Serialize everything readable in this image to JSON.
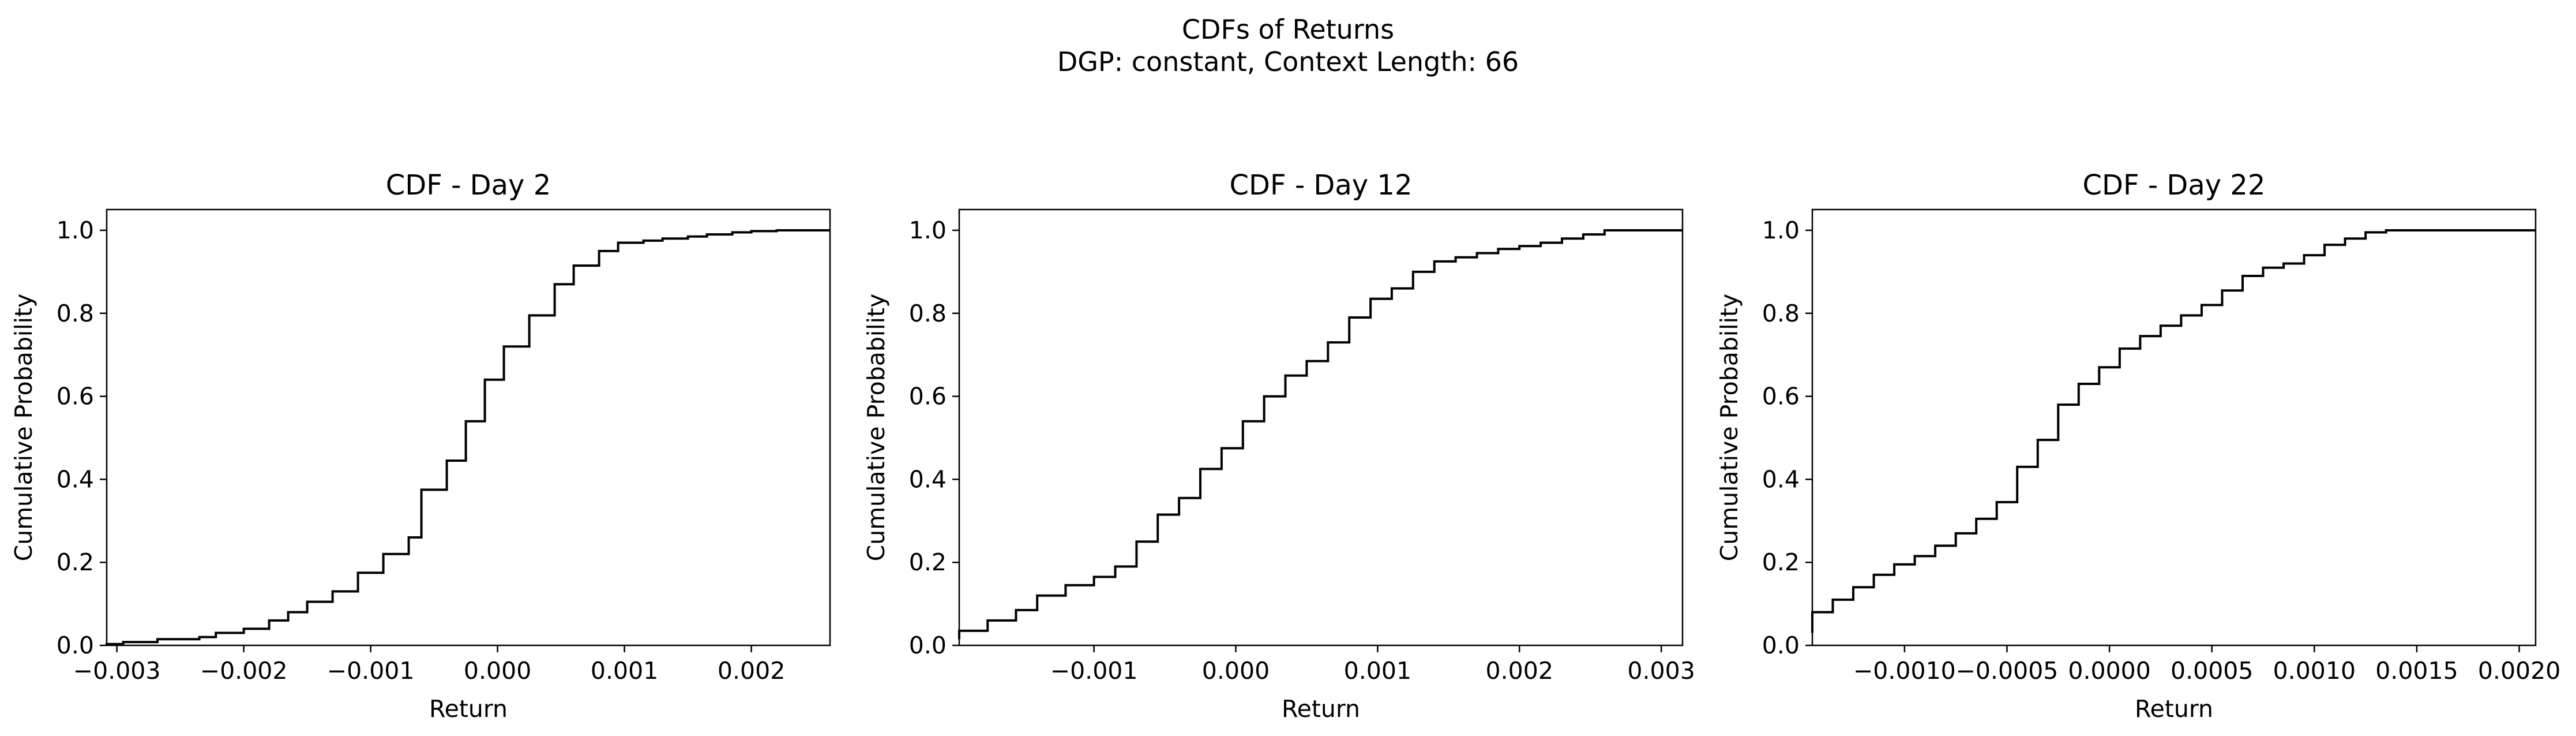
{
  "figure": {
    "title_line1": "CDFs of Returns",
    "title_line2": "DGP: constant, Context Length: 66"
  },
  "chart_data": [
    {
      "type": "line",
      "style": "step",
      "title": "CDF - Day 2",
      "xlabel": "Return",
      "ylabel": "Cumulative Probability",
      "xlim": [
        -0.00308,
        0.00262
      ],
      "ylim": [
        0.0,
        1.05
      ],
      "xticks": [
        -0.003,
        -0.002,
        -0.001,
        0.0,
        0.001,
        0.002
      ],
      "xtick_labels": [
        "−0.003",
        "−0.002",
        "−0.001",
        "0.000",
        "0.001",
        "0.002"
      ],
      "yticks": [
        0.0,
        0.2,
        0.4,
        0.6,
        0.8,
        1.0
      ],
      "ytick_labels": [
        "0.0",
        "0.2",
        "0.4",
        "0.6",
        "0.8",
        "1.0"
      ],
      "grid": false,
      "color": "#000000",
      "x": [
        -0.00308,
        -0.00295,
        -0.00268,
        -0.00235,
        -0.00222,
        -0.002,
        -0.0018,
        -0.00165,
        -0.0015,
        -0.0013,
        -0.0011,
        -0.0009,
        -0.0007,
        -0.0006,
        -0.0004,
        -0.00025,
        -0.0001,
        5e-05,
        0.00025,
        0.00045,
        0.0006,
        0.0008,
        0.00095,
        0.00115,
        0.0013,
        0.0015,
        0.00165,
        0.00185,
        0.002,
        0.0022,
        0.0024,
        0.00262
      ],
      "y": [
        0.0,
        0.003,
        0.008,
        0.015,
        0.02,
        0.03,
        0.04,
        0.06,
        0.08,
        0.105,
        0.13,
        0.175,
        0.22,
        0.26,
        0.375,
        0.445,
        0.54,
        0.64,
        0.72,
        0.795,
        0.87,
        0.915,
        0.95,
        0.97,
        0.975,
        0.98,
        0.985,
        0.99,
        0.995,
        0.998,
        1.0,
        1.0
      ]
    },
    {
      "type": "line",
      "style": "step",
      "title": "CDF - Day 12",
      "xlabel": "Return",
      "ylabel": "Cumulative Probability",
      "xlim": [
        -0.00195,
        0.00315
      ],
      "ylim": [
        0.0,
        1.05
      ],
      "xticks": [
        -0.001,
        0.0,
        0.001,
        0.002,
        0.003
      ],
      "xtick_labels": [
        "−0.001",
        "0.000",
        "0.001",
        "0.002",
        "0.003"
      ],
      "yticks": [
        0.0,
        0.2,
        0.4,
        0.6,
        0.8,
        1.0
      ],
      "ytick_labels": [
        "0.0",
        "0.2",
        "0.4",
        "0.6",
        "0.8",
        "1.0"
      ],
      "grid": false,
      "color": "#000000",
      "x": [
        -0.00195,
        -0.00175,
        -0.00155,
        -0.0014,
        -0.0012,
        -0.001,
        -0.00085,
        -0.0007,
        -0.00055,
        -0.0004,
        -0.00025,
        -0.0001,
        5e-05,
        0.0002,
        0.00035,
        0.0005,
        0.00065,
        0.0008,
        0.00095,
        0.0011,
        0.00125,
        0.0014,
        0.00155,
        0.0017,
        0.00185,
        0.002,
        0.00215,
        0.0023,
        0.00245,
        0.0026,
        0.00275,
        0.0029,
        0.00315
      ],
      "y": [
        0.015,
        0.035,
        0.06,
        0.085,
        0.12,
        0.145,
        0.165,
        0.19,
        0.25,
        0.315,
        0.355,
        0.425,
        0.475,
        0.54,
        0.6,
        0.65,
        0.685,
        0.73,
        0.79,
        0.835,
        0.86,
        0.9,
        0.925,
        0.935,
        0.945,
        0.955,
        0.962,
        0.97,
        0.98,
        0.99,
        1.0,
        1.0,
        1.0
      ]
    },
    {
      "type": "line",
      "style": "step",
      "title": "CDF - Day 22",
      "xlabel": "Return",
      "ylabel": "Cumulative Probability",
      "xlim": [
        -0.00145,
        0.00208
      ],
      "ylim": [
        0.0,
        1.05
      ],
      "xticks": [
        -0.001,
        -0.0005,
        0.0,
        0.0005,
        0.001,
        0.0015,
        0.002
      ],
      "xtick_labels": [
        "−0.0010",
        "−0.0005",
        "0.0000",
        "0.0005",
        "0.0010",
        "0.0015",
        "0.0020"
      ],
      "yticks": [
        0.0,
        0.2,
        0.4,
        0.6,
        0.8,
        1.0
      ],
      "ytick_labels": [
        "0.0",
        "0.2",
        "0.4",
        "0.6",
        "0.8",
        "1.0"
      ],
      "grid": false,
      "color": "#000000",
      "x": [
        -0.00145,
        -0.00135,
        -0.00125,
        -0.00115,
        -0.00105,
        -0.00095,
        -0.00085,
        -0.00075,
        -0.00065,
        -0.00055,
        -0.00045,
        -0.00035,
        -0.00025,
        -0.00015,
        -5e-05,
        5e-05,
        0.00015,
        0.00025,
        0.00035,
        0.00045,
        0.00055,
        0.00065,
        0.00075,
        0.00085,
        0.00095,
        0.00105,
        0.00115,
        0.00125,
        0.00135,
        0.00145,
        0.00155,
        0.00165,
        0.00175,
        0.00185,
        0.00195,
        0.00208
      ],
      "y": [
        0.03,
        0.08,
        0.11,
        0.14,
        0.17,
        0.195,
        0.215,
        0.24,
        0.27,
        0.305,
        0.345,
        0.43,
        0.495,
        0.58,
        0.63,
        0.67,
        0.715,
        0.745,
        0.77,
        0.795,
        0.82,
        0.855,
        0.89,
        0.91,
        0.92,
        0.94,
        0.965,
        0.98,
        0.995,
        1.0,
        1.0,
        1.0,
        1.0,
        1.0,
        1.0,
        1.0
      ]
    }
  ]
}
